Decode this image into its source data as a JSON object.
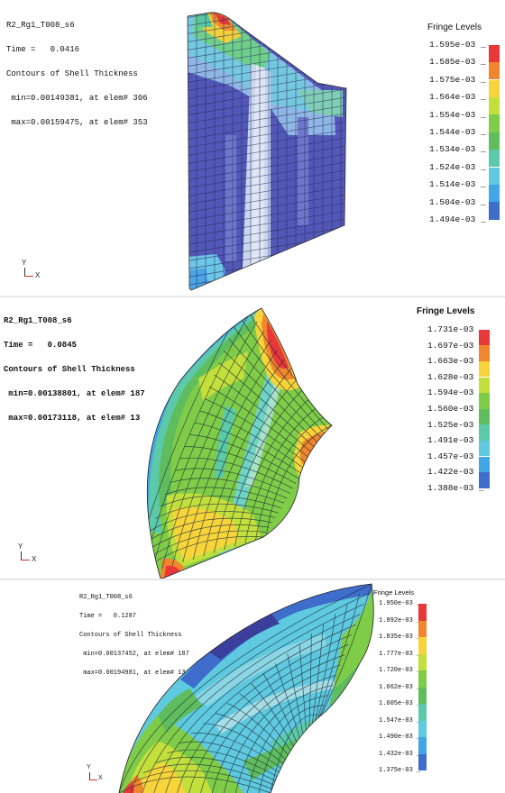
{
  "panels": [
    {
      "header": [
        "R2_Rg1_T008_s6",
        "Time =   0.0416",
        "Contours of Shell Thickness",
        " min=0.00149381, at elem# 306",
        " max=0.00159475, at elem# 353"
      ],
      "legend_title": "Fringe Levels",
      "levels": [
        "1.595e-03",
        "1.585e-03",
        "1.575e-03",
        "1.564e-03",
        "1.554e-03",
        "1.544e-03",
        "1.534e-03",
        "1.524e-03",
        "1.514e-03",
        "1.504e-03",
        "1.494e-03"
      ],
      "axis": {
        "y": "Y",
        "x": "X"
      }
    },
    {
      "header": [
        "R2_Rg1_T008_s6",
        "Time =   0.0845",
        "Contours of Shell Thickness",
        " min=0.00138801, at elem# 187",
        " max=0.00173118, at elem# 13"
      ],
      "legend_title": "Fringe Levels",
      "levels": [
        "1.731e-03",
        "1.697e-03",
        "1.663e-03",
        "1.628e-03",
        "1.594e-03",
        "1.560e-03",
        "1.525e-03",
        "1.491e-03",
        "1.457e-03",
        "1.422e-03",
        "1.388e-03"
      ],
      "axis": {
        "y": "Y",
        "x": "X"
      }
    },
    {
      "header": [
        "R2_Rg1_T008_s6",
        "Time =   0.1287",
        "Contours of Shell Thickness",
        " min=0.00137452, at elem# 187",
        " max=0.00194981, at elem# 13"
      ],
      "legend_title": "Fringe Levels",
      "levels": [
        "1.950e-03",
        "1.892e-03",
        "1.835e-03",
        "1.777e-03",
        "1.720e-03",
        "1.662e-03",
        "1.605e-03",
        "1.547e-03",
        "1.490e-03",
        "1.432e-03",
        "1.375e-03"
      ],
      "axis": {
        "y": "Y",
        "x": "X"
      }
    }
  ],
  "colors": {
    "fringe": [
      "#e8383a",
      "#f0862e",
      "#f7d43a",
      "#c3df3c",
      "#7fcc48",
      "#5fbd5e",
      "#5cc9a8",
      "#5ec9df",
      "#41a6e6",
      "#3f6dcc",
      "#3a3f9c"
    ],
    "mesh": "#1c2a36"
  }
}
